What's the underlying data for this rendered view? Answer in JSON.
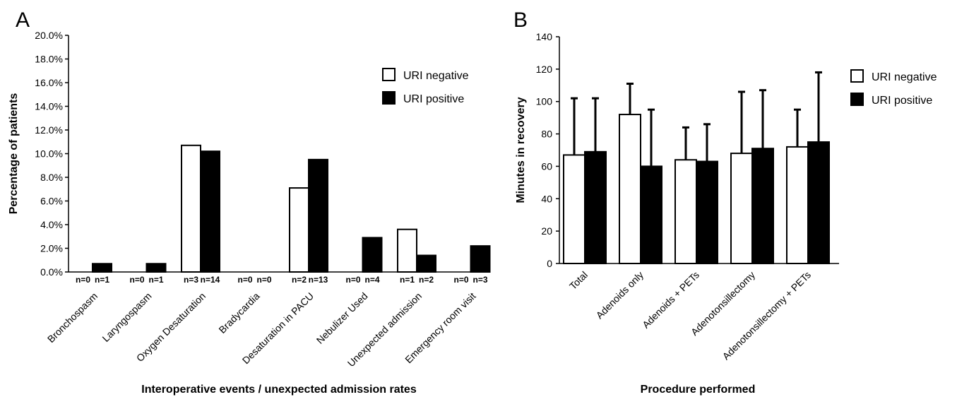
{
  "chart_data": [
    {
      "panel_label": "A",
      "type": "bar",
      "xlabel": "Interoperative events / unexpected admission rates",
      "ylabel": "Percentage of patients",
      "ylim": [
        0,
        20
      ],
      "y_ticks": [
        "0.0%",
        "2.0%",
        "4.0%",
        "6.0%",
        "8.0%",
        "10.0%",
        "12.0%",
        "14.0%",
        "16.0%",
        "18.0%",
        "20.0%"
      ],
      "categories": [
        "Bronchospasm",
        "Laryngospasm",
        "Oxygen Desaturation",
        "Bradycardia",
        "Desaturation in PACU",
        "Nebulizer Used",
        "Unexpected admission",
        "Emergency room visit"
      ],
      "series": [
        {
          "name": "URI negative",
          "fill": "#ffffff",
          "values": [
            0,
            0,
            10.7,
            0,
            7.1,
            0,
            3.6,
            0
          ],
          "n_labels": [
            "n=0",
            "n=0",
            "n=3",
            "n=0",
            "n=2",
            "n=0",
            "n=1",
            "n=0"
          ]
        },
        {
          "name": "URI positive",
          "fill": "#000000",
          "values": [
            0.7,
            0.7,
            10.2,
            0,
            9.5,
            2.9,
            1.4,
            2.2
          ],
          "n_labels": [
            "n=1",
            "n=1",
            "n=14",
            "n=0",
            "n=13",
            "n=4",
            "n=2",
            "n=3"
          ]
        }
      ],
      "grid": false,
      "legend_position": "top-right"
    },
    {
      "panel_label": "B",
      "type": "bar",
      "xlabel": "Procedure performed",
      "ylabel": "Minutes in recovery",
      "ylim": [
        0,
        140
      ],
      "y_ticks": [
        "0",
        "20",
        "40",
        "60",
        "80",
        "100",
        "120",
        "140"
      ],
      "categories": [
        "Total",
        "Adenoids only",
        "Adenoids + PETs",
        "Adenotonsillectomy",
        "Adenotonsillectomy + PETs"
      ],
      "series": [
        {
          "name": "URI negative",
          "fill": "#ffffff",
          "values": [
            67,
            92,
            64,
            68,
            72
          ],
          "error_upper": [
            102,
            111,
            84,
            106,
            95
          ]
        },
        {
          "name": "URI positive",
          "fill": "#000000",
          "values": [
            69,
            60,
            63,
            71,
            75
          ],
          "error_upper": [
            102,
            95,
            86,
            107,
            118
          ]
        }
      ],
      "grid": false,
      "legend_position": "top-right"
    }
  ]
}
